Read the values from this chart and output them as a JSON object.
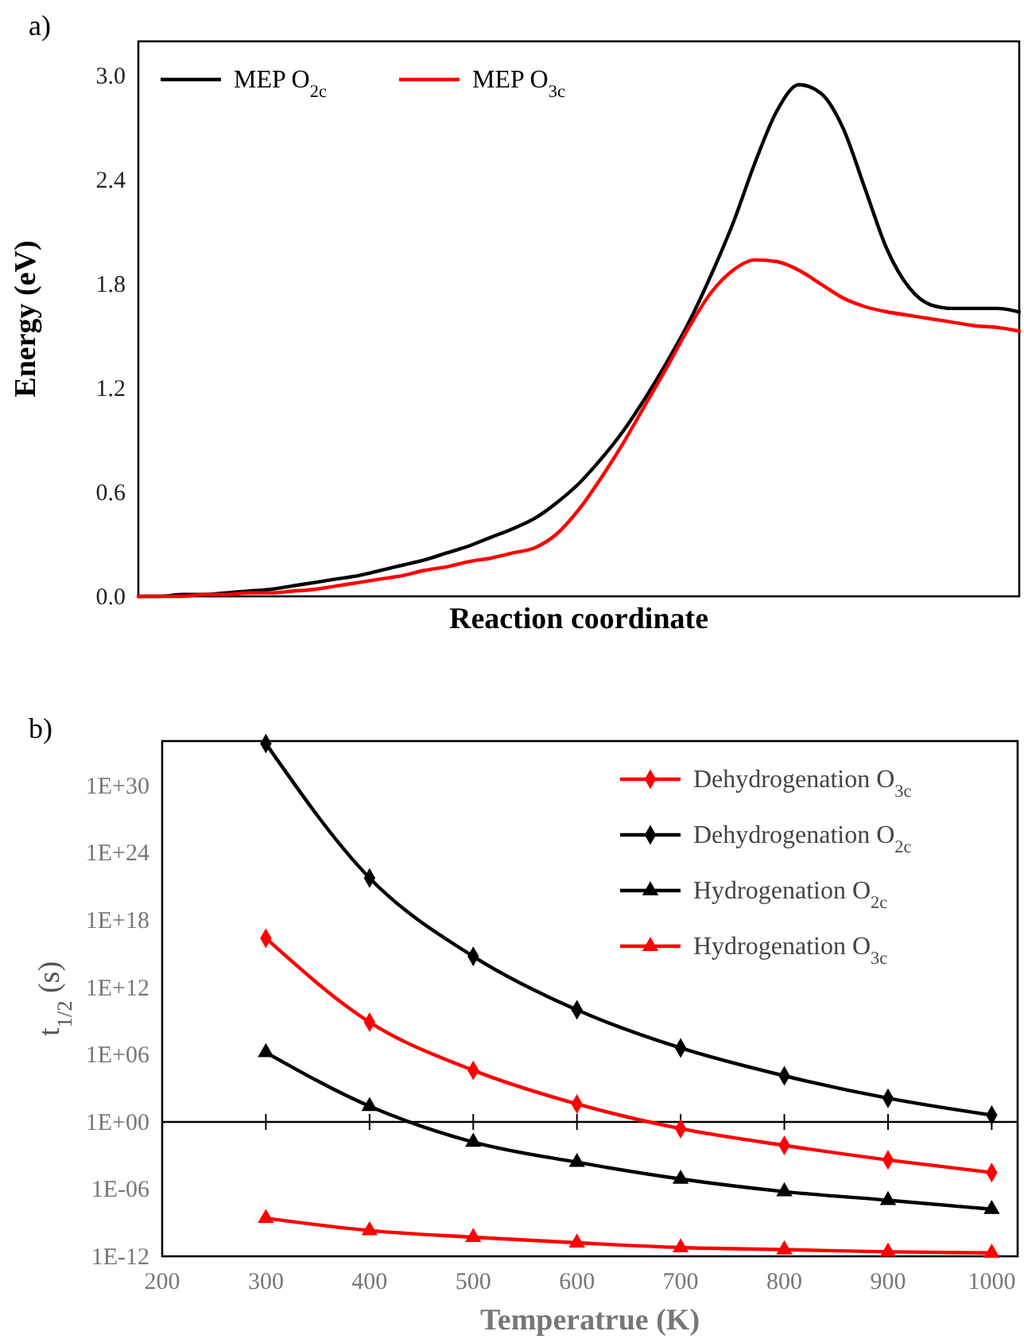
{
  "chart_data": [
    {
      "type": "line",
      "annotations": [
        "a)"
      ],
      "xlabel": "Reaction coordinate",
      "ylabel": "Energy (eV)",
      "categories": [
        null,
        null,
        null,
        null,
        null,
        null,
        null,
        null,
        null,
        null,
        null,
        null,
        null,
        null,
        null,
        null,
        null,
        null,
        null,
        null,
        null,
        null,
        null,
        null,
        null,
        null,
        null,
        null,
        null,
        null,
        null,
        null,
        null,
        null,
        null,
        null,
        null,
        null,
        null,
        null,
        null
      ],
      "ylim": [
        0,
        3.2
      ],
      "yticks": [
        {
          "value": 0,
          "label": "0.0"
        },
        {
          "value": 0.6,
          "label": "0.6"
        },
        {
          "value": 1.2,
          "label": "1.2"
        },
        {
          "value": 1.8,
          "label": "1.8"
        },
        {
          "value": 2.4,
          "label": "2.4"
        },
        {
          "value": 3,
          "label": "3.0"
        }
      ],
      "grid": false,
      "legend": "top left",
      "marker": "none",
      "tick_labels": "y",
      "series": [
        {
          "name": "MEP O$_{2c}$",
          "color": "#000000",
          "values": [
            0,
            0,
            0.01,
            0.01,
            0.02,
            0.03,
            0.04,
            0.06,
            0.08,
            0.1,
            0.12,
            0.15,
            0.18,
            0.21,
            0.25,
            0.29,
            0.34,
            0.39,
            0.45,
            0.54,
            0.65,
            0.79,
            0.95,
            1.14,
            1.35,
            1.58,
            1.85,
            2.15,
            2.5,
            2.8,
            2.95,
            2.9,
            2.7,
            2.35,
            2.0,
            1.78,
            1.68,
            1.66,
            1.66,
            1.66,
            1.64
          ]
        },
        {
          "name": "MEP O$_{3c}$",
          "color": "#ff0000",
          "values": [
            0,
            0,
            0,
            0.01,
            0.01,
            0.02,
            0.02,
            0.03,
            0.04,
            0.06,
            0.08,
            0.1,
            0.12,
            0.15,
            0.17,
            0.2,
            0.22,
            0.25,
            0.28,
            0.36,
            0.5,
            0.68,
            0.88,
            1.1,
            1.32,
            1.55,
            1.75,
            1.88,
            1.94,
            1.93,
            1.88,
            1.8,
            1.72,
            1.67,
            1.64,
            1.62,
            1.6,
            1.58,
            1.56,
            1.55,
            1.53
          ]
        }
      ]
    },
    {
      "type": "line",
      "annotations": [
        "b)"
      ],
      "xlabel": "Temperatrue (K)",
      "ylabel": "t$_{1/2}$ (s)",
      "x": [
        300,
        400,
        500,
        600,
        700,
        800,
        900,
        1000
      ],
      "xlim": [
        200,
        1025
      ],
      "xticks": [
        200,
        300,
        400,
        500,
        600,
        700,
        800,
        900,
        1000
      ],
      "log": "y",
      "ylim": [
        1e-12,
        1e+34
      ],
      "yticks": [
        {
          "value": 1e-12,
          "label": "1E-12"
        },
        {
          "value": 1e-06,
          "label": "1E-06"
        },
        {
          "value": 1,
          "label": "1E+00"
        },
        {
          "value": 1000000.0,
          "label": "1E+06"
        },
        {
          "value": 1000000000000.0,
          "label": "1E+12"
        },
        {
          "value": 1e+18,
          "label": "1E+18"
        },
        {
          "value": 1e+24,
          "label": "1E+24"
        },
        {
          "value": 1e+30,
          "label": "1E+30"
        }
      ],
      "grid": false,
      "legend": "top right",
      "ref_lines": [
        {
          "axis": "y",
          "value": 1,
          "color": "#000000"
        }
      ],
      "series": [
        {
          "name": "Dehydrogenation O$_{3c}$",
          "color": "#ff0000",
          "marker": "diamond",
          "values": [
            2.5e+16,
            800000000.0,
            40000.0,
            40,
            0.25,
            0.008,
            0.0004,
            3e-05
          ]
        },
        {
          "name": "Dehydrogenation O$_{2c}$",
          "color": "#000000",
          "marker": "diamond",
          "values": [
            6e+33,
            6e+21,
            600000000000000.0,
            10000000000.0,
            4000000.0,
            13000.0,
            130,
            4
          ]
        },
        {
          "name": "Hydrogenation O$_{2c}$",
          "color": "#000000",
          "marker": "triangle",
          "values": [
            1600000.0,
            25,
            0.016,
            0.00025,
            8e-06,
            6e-07,
            1e-07,
            1.6e-08
          ]
        },
        {
          "name": "Hydrogenation O$_{3c}$",
          "color": "#ff0000",
          "marker": "triangle",
          "values": [
            2.5e-09,
            2e-10,
            5e-11,
            1.6e-11,
            6e-12,
            4e-12,
            2.5e-12,
            2e-12
          ]
        }
      ]
    }
  ]
}
